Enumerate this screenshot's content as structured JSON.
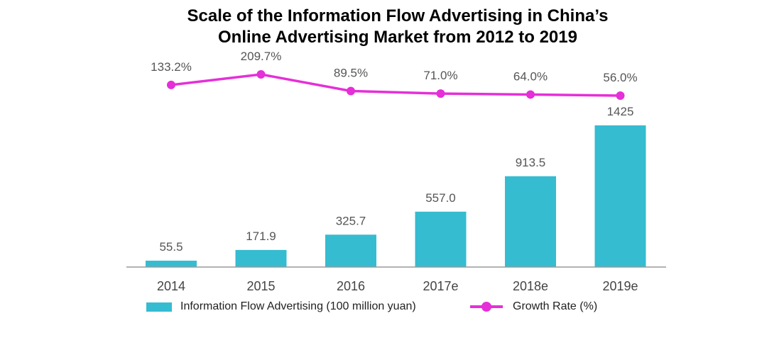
{
  "chart_data": {
    "type": "bar",
    "title_line1": "Scale of the Information Flow Advertising in China’s",
    "title_line2": "Online Advertising Market from 2012 to 2019",
    "categories": [
      "2014",
      "2015",
      "2016",
      "2017e",
      "2018e",
      "2019e"
    ],
    "series": [
      {
        "name": "Information Flow Advertising (100 million yuan)",
        "type": "bar",
        "values": [
          55.5,
          171.9,
          325.7,
          557.0,
          913.5,
          1425
        ],
        "labels": [
          "55.5",
          "171.9",
          "325.7",
          "557.0",
          "913.5",
          "1425"
        ],
        "color": "#35BCD1"
      },
      {
        "name": "Growth Rate (%)",
        "type": "line",
        "values": [
          133.2,
          209.7,
          89.5,
          71.0,
          64.0,
          56.0
        ],
        "labels": [
          "133.2%",
          "209.7%",
          "89.5%",
          "71.0%",
          "64.0%",
          "56.0%"
        ],
        "color": "#E52FD8"
      }
    ],
    "grid": false,
    "legend_position": "bottom"
  }
}
